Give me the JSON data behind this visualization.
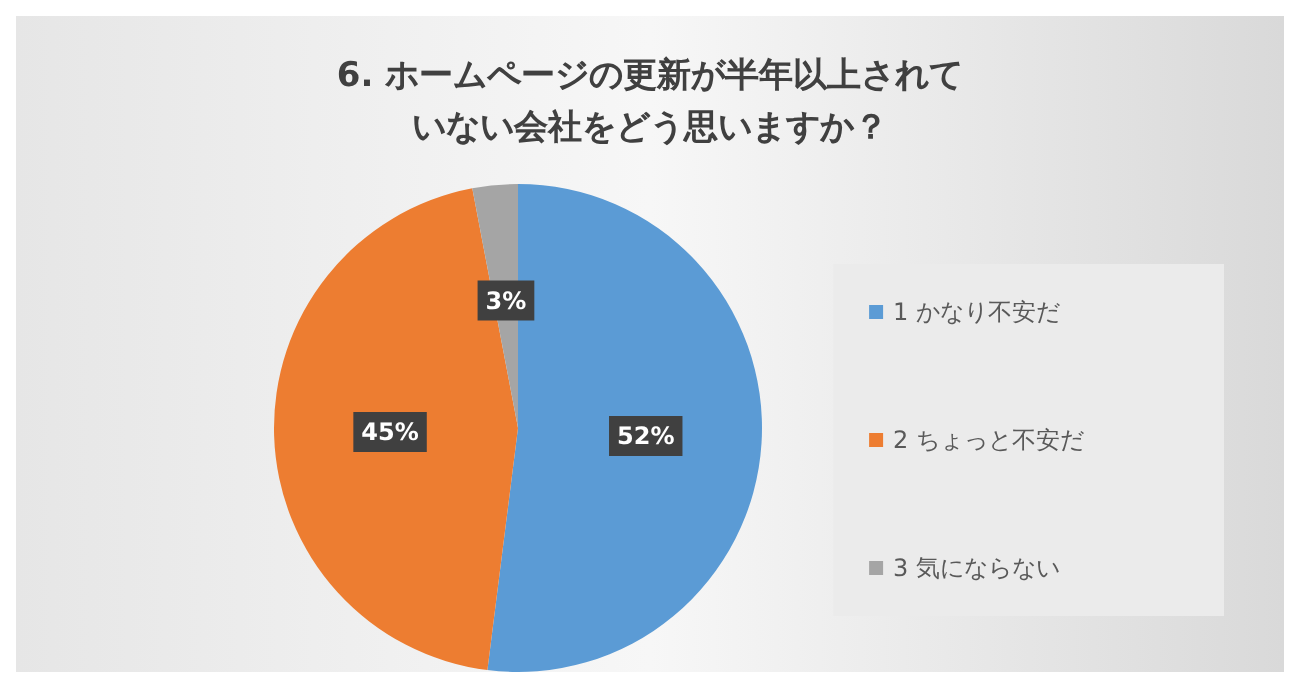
{
  "chart_data": {
    "type": "pie",
    "title": "6. ホームページの更新が半年以上されていない会社をどう思いますか？",
    "categories": [
      "1 かなり不安だ",
      "2 ちょっと不安だ",
      "3 気にならない"
    ],
    "values": [
      52,
      45,
      3
    ],
    "colors": [
      "#5b9bd5",
      "#ed7d31",
      "#a5a5a5"
    ],
    "value_labels": [
      "52%",
      "45%",
      "3%"
    ],
    "legend": "right"
  }
}
